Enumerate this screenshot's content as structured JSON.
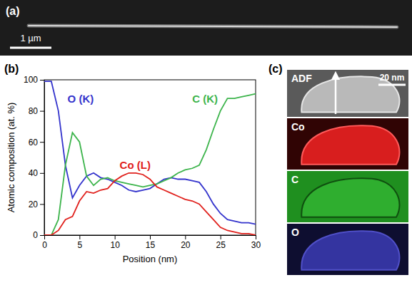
{
  "chart_data": {
    "type": "line",
    "x_label": "Position (nm)",
    "y_label": "Atomic composition (at. %)",
    "x": [
      0,
      1,
      2,
      3,
      4,
      5,
      6,
      7,
      8,
      9,
      10,
      11,
      12,
      13,
      14,
      15,
      16,
      17,
      18,
      19,
      20,
      21,
      22,
      23,
      24,
      25,
      26,
      27,
      28,
      29,
      30
    ],
    "series": [
      {
        "name": "O (K)",
        "color": "#3333cc",
        "values": [
          99,
          99,
          80,
          45,
          24,
          32,
          38,
          40,
          37,
          36,
          34,
          32,
          29,
          28,
          29,
          30,
          33,
          36,
          37,
          36,
          36,
          35,
          34,
          28,
          20,
          14,
          10,
          9,
          8,
          8,
          7
        ]
      },
      {
        "name": "C (K)",
        "color": "#3cb44b",
        "values": [
          0,
          0,
          10,
          45,
          66,
          60,
          38,
          32,
          36,
          37,
          35,
          34,
          33,
          32,
          31,
          32,
          33,
          35,
          37,
          40,
          42,
          43,
          45,
          55,
          68,
          80,
          88,
          88,
          89,
          90,
          91
        ]
      },
      {
        "name": "Co (L)",
        "color": "#e0201c",
        "values": [
          0,
          0,
          3,
          10,
          12,
          22,
          28,
          27,
          29,
          30,
          35,
          38,
          40,
          40,
          39,
          36,
          31,
          29,
          27,
          25,
          23,
          22,
          20,
          15,
          10,
          5,
          3,
          2,
          1,
          1,
          0
        ]
      }
    ],
    "xlim": [
      0,
      30
    ],
    "xticks": [
      0,
      5,
      10,
      15,
      20,
      25,
      30
    ],
    "ylim": [
      0,
      100
    ],
    "yticks": [
      0,
      20,
      40,
      60,
      80,
      100
    ],
    "grid": false
  },
  "figure": {
    "panels": [
      {
        "label": "(a)",
        "scale_bar": "1 µm"
      },
      {
        "label": "(b)"
      },
      {
        "label": "(c)",
        "scale_bar": "20 nm",
        "maps": [
          "ADF",
          "Co",
          "C",
          "O"
        ]
      }
    ]
  }
}
